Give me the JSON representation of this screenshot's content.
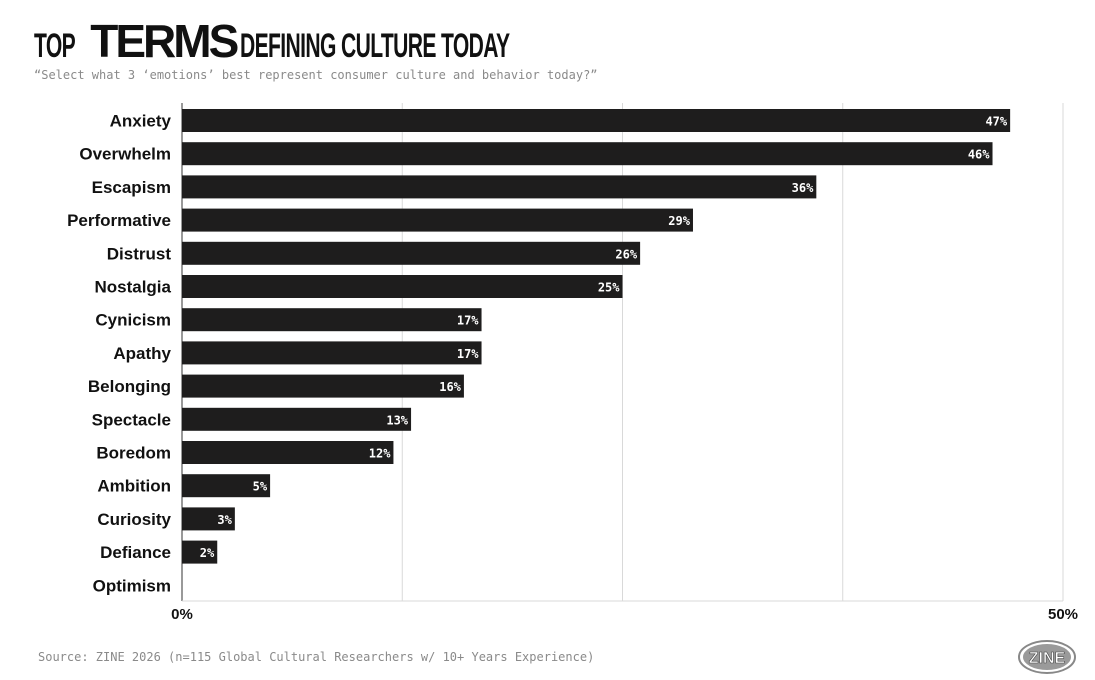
{
  "title": {
    "part1": "TOP",
    "part2": "TERMS",
    "part3": "DEFINING CULTURE TODAY"
  },
  "subtitle": "“Select what 3 ‘emotions’ best represent consumer culture and behavior today?”",
  "source": "Source: ZINE 2026 (n=115 Global Cultural Researchers w/ 10+ Years Experience)",
  "logo_text": "ZINE",
  "colors": {
    "bar": "#1e1d1d",
    "grid": "#d9d9d9",
    "axis": "#333333"
  },
  "chart_data": {
    "type": "bar",
    "orientation": "horizontal",
    "categories": [
      "Anxiety",
      "Overwhelm",
      "Escapism",
      "Performative",
      "Distrust",
      "Nostalgia",
      "Cynicism",
      "Apathy",
      "Belonging",
      "Spectacle",
      "Boredom",
      "Ambition",
      "Curiosity",
      "Defiance",
      "Optimism"
    ],
    "values": [
      47,
      46,
      36,
      29,
      26,
      25,
      17,
      17,
      16,
      13,
      12,
      5,
      3,
      2,
      0
    ],
    "value_labels": [
      "47%",
      "46%",
      "36%",
      "29%",
      "26%",
      "25%",
      "17%",
      "17%",
      "16%",
      "13%",
      "12%",
      "5%",
      "3%",
      "2%",
      ""
    ],
    "xlim": [
      0,
      50
    ],
    "xticks": [
      "0%",
      "50%"
    ],
    "gridlines": [
      0,
      12.5,
      25,
      37.5,
      50
    ],
    "grid": true
  }
}
